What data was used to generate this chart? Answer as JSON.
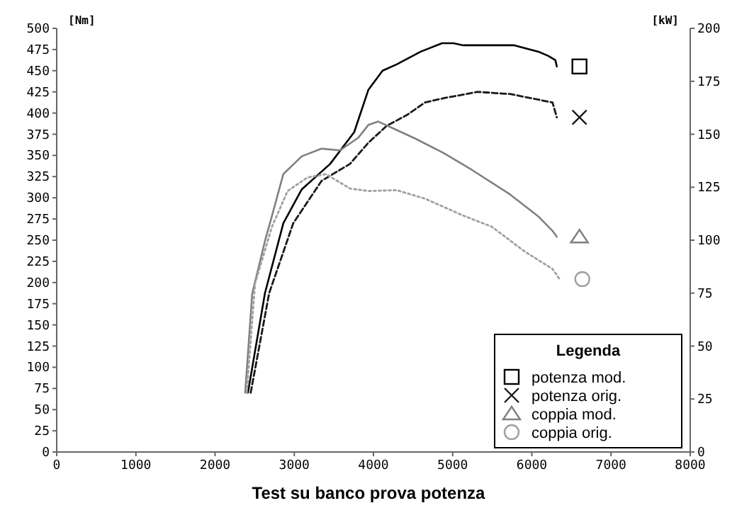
{
  "chart_data": {
    "type": "line",
    "title": "Test su banco prova potenza",
    "ylabel": "[Nm]",
    "y2label": "[kW]",
    "legend_title": "Legenda",
    "legend": "bottom right",
    "grid": false,
    "xlim": [
      0,
      8000
    ],
    "xticks": [
      0,
      1000,
      2000,
      3000,
      4000,
      5000,
      6000,
      7000,
      8000
    ],
    "ylim": [
      0,
      500
    ],
    "yticks": [
      0,
      25,
      50,
      75,
      100,
      125,
      150,
      175,
      200,
      225,
      250,
      275,
      300,
      325,
      350,
      375,
      400,
      425,
      450,
      475,
      500
    ],
    "y2lim": [
      0,
      200
    ],
    "y2ticks": [
      0,
      25,
      50,
      75,
      100,
      125,
      150,
      175,
      200
    ],
    "series": [
      {
        "name": "potenza mod.",
        "color": "#000000",
        "axis": "y2",
        "line_style": "solid",
        "x": [
          2415,
          2630,
          2862,
          3095,
          3453,
          3757,
          3936,
          4115,
          4293,
          4597,
          4866,
          5009,
          5134,
          5778,
          6082,
          6207,
          6297,
          6315
        ],
        "values": [
          28,
          75,
          108,
          124,
          136,
          151,
          171,
          180,
          183,
          189,
          193,
          193,
          192,
          192,
          189,
          187,
          185,
          182
        ]
      },
      {
        "name": "potenza orig.",
        "color": "#1a1a1a",
        "axis": "y2",
        "line_style": "dashed",
        "x": [
          2450,
          2683,
          2987,
          3345,
          3703,
          3936,
          4168,
          4419,
          4651,
          4884,
          5313,
          5725,
          6261,
          6315
        ],
        "values": [
          28,
          75,
          108,
          128,
          136,
          146,
          154,
          159,
          165,
          167,
          170,
          169,
          165,
          158
        ]
      },
      {
        "name": "coppia mod.",
        "color": "#808080",
        "axis": "y",
        "line_style": "solid",
        "x": [
          2380,
          2469,
          2630,
          2719,
          2862,
          3095,
          3345,
          3578,
          3810,
          3936,
          4061,
          4293,
          4526,
          4884,
          5242,
          5725,
          6082,
          6261,
          6315
        ],
        "values": [
          70,
          187,
          249,
          279,
          328,
          349,
          358,
          356,
          371,
          386,
          390,
          380,
          370,
          353,
          333,
          304,
          278,
          261,
          254
        ]
      },
      {
        "name": "coppia orig.",
        "color": "#a0a0a0",
        "axis": "y",
        "line_style": "dotted",
        "x": [
          2400,
          2505,
          2719,
          2916,
          3166,
          3399,
          3703,
          3936,
          4293,
          4651,
          5134,
          5492,
          5904,
          6261,
          6351
        ],
        "values": [
          70,
          199,
          266,
          308,
          324,
          328,
          311,
          308,
          309,
          299,
          279,
          266,
          237,
          216,
          204
        ]
      }
    ]
  }
}
